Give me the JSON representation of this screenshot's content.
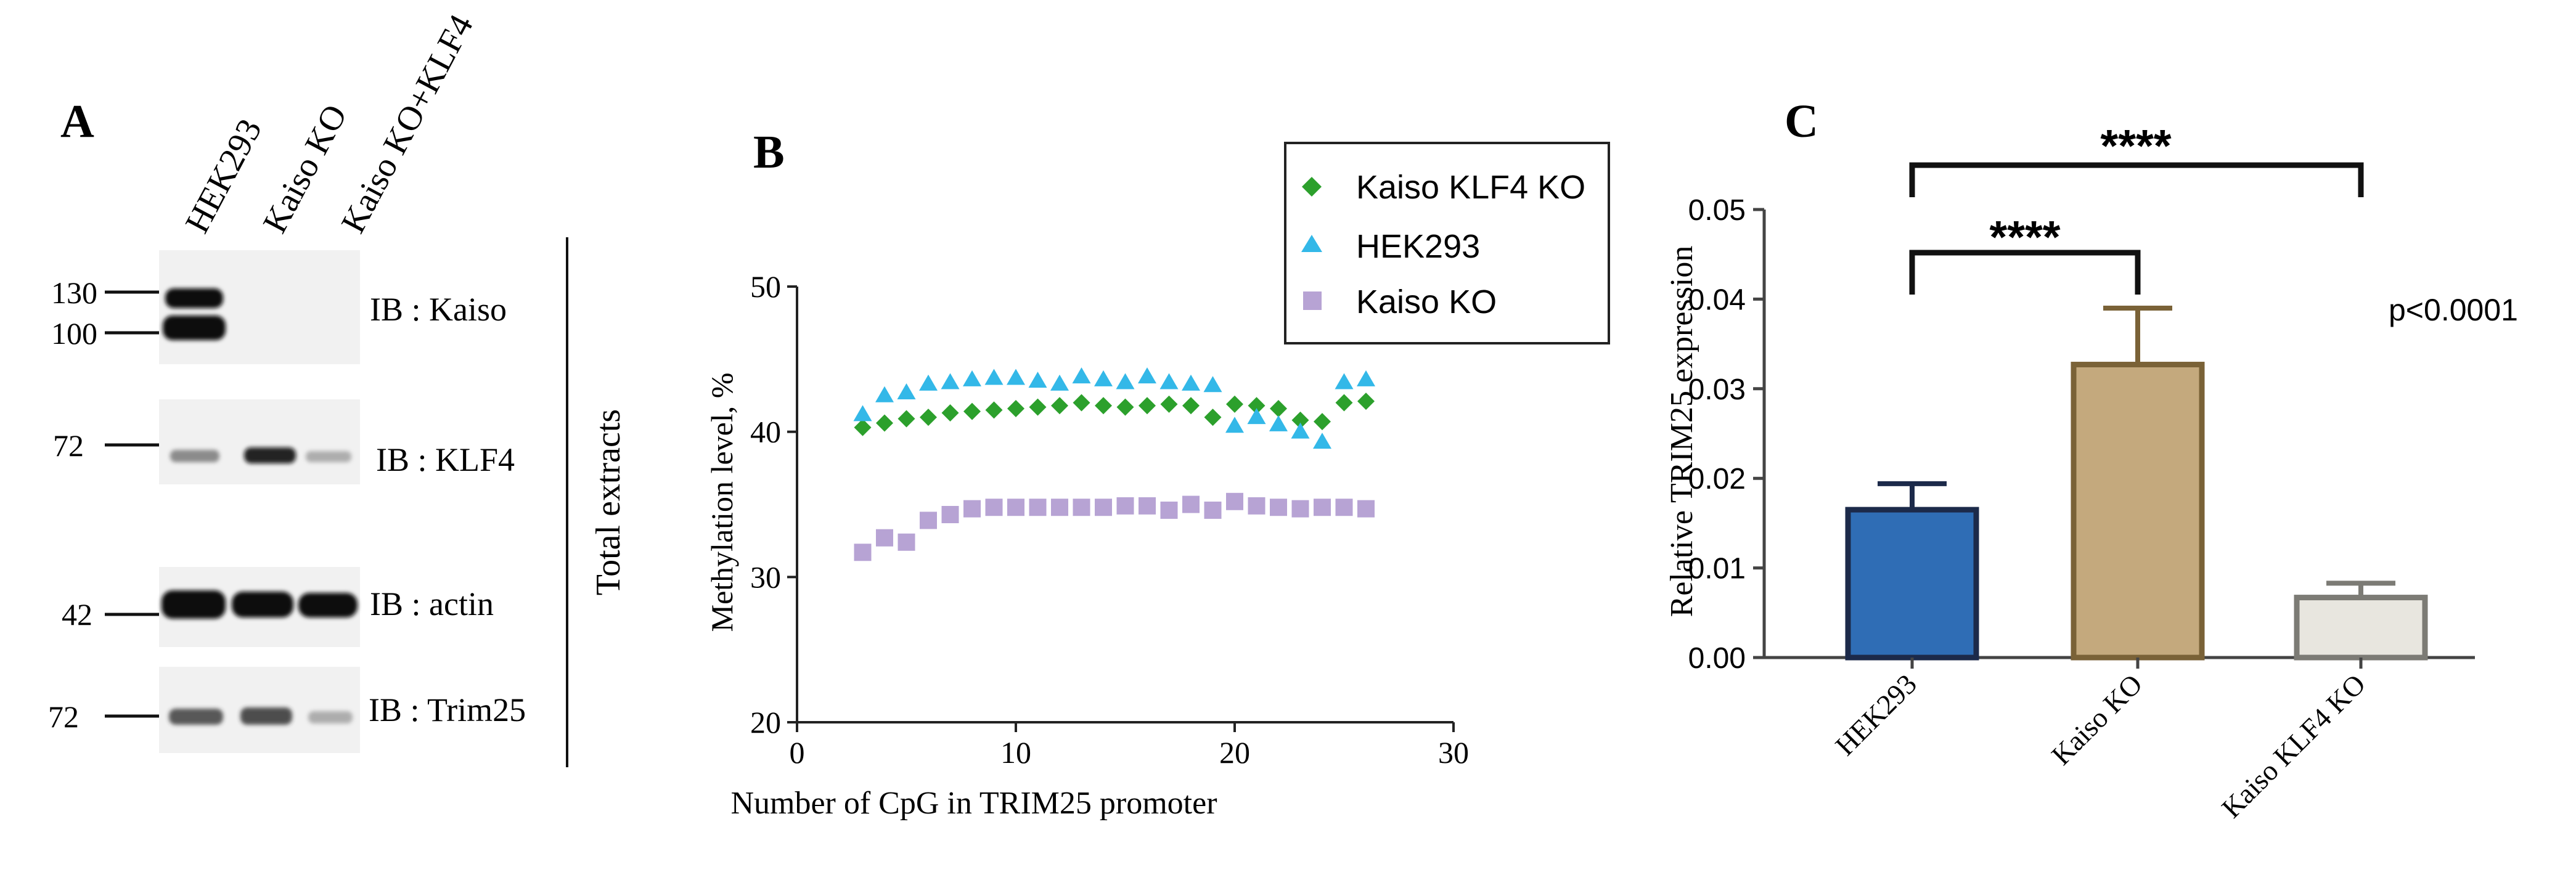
{
  "panel_a": {
    "label": "A",
    "lane_labels": [
      "HEK293",
      "Kaiso KO",
      "Kaiso KO+KLF4"
    ],
    "blots": [
      {
        "name": "kaiso",
        "markers": [
          "130",
          "100"
        ],
        "label": "IB : Kaiso",
        "intensity": [
          1.0,
          0.0,
          0.0
        ]
      },
      {
        "name": "klf4",
        "markers": [
          "72"
        ],
        "label": "IB : KLF4",
        "intensity": [
          0.35,
          0.65,
          0.25
        ]
      },
      {
        "name": "actin",
        "markers": [
          "42"
        ],
        "label": "IB : actin",
        "intensity": [
          1.0,
          0.95,
          0.9
        ]
      },
      {
        "name": "trim25",
        "markers": [
          "72"
        ],
        "label": "IB : Trim25",
        "intensity": [
          0.55,
          0.6,
          0.3
        ]
      }
    ],
    "side_label": "Total extracts"
  },
  "chart_data": [
    {
      "panel": "B",
      "type": "scatter",
      "xlabel": "Number of CpG in TRIM25 promoter",
      "ylabel": "Methylation level, %",
      "xlim": [
        0,
        30
      ],
      "ylim": [
        20,
        50
      ],
      "xticks": [
        0,
        10,
        20,
        30
      ],
      "yticks": [
        20,
        30,
        40,
        50
      ],
      "legend_position": "top-right",
      "series": [
        {
          "name": "Kaiso KLF4 KO",
          "marker": "diamond",
          "color": "#2ca02c",
          "x": [
            3,
            4,
            5,
            6,
            7,
            8,
            9,
            10,
            11,
            12,
            13,
            14,
            15,
            16,
            17,
            18,
            19,
            20,
            21,
            22,
            23,
            24,
            25,
            26
          ],
          "y": [
            40.3,
            40.6,
            40.9,
            41.0,
            41.3,
            41.4,
            41.5,
            41.6,
            41.7,
            41.8,
            42.0,
            41.8,
            41.7,
            41.8,
            41.9,
            41.8,
            41.0,
            41.9,
            41.8,
            41.6,
            40.8,
            40.7,
            42.0,
            42.1
          ]
        },
        {
          "name": "HEK293",
          "marker": "triangle",
          "color": "#33b8e8",
          "x": [
            3,
            4,
            5,
            6,
            7,
            8,
            9,
            10,
            11,
            12,
            13,
            14,
            15,
            16,
            17,
            18,
            19,
            20,
            21,
            22,
            23,
            24,
            25,
            26
          ],
          "y": [
            41.2,
            42.5,
            42.7,
            43.3,
            43.4,
            43.6,
            43.7,
            43.7,
            43.5,
            43.3,
            43.8,
            43.6,
            43.4,
            43.8,
            43.4,
            43.3,
            43.2,
            40.4,
            41.0,
            40.5,
            40.0,
            39.3,
            43.4,
            43.6
          ]
        },
        {
          "name": "Kaiso KO",
          "marker": "square",
          "color": "#b7a3d4",
          "x": [
            3,
            4,
            5,
            6,
            7,
            8,
            9,
            10,
            11,
            12,
            13,
            14,
            15,
            16,
            17,
            18,
            19,
            20,
            21,
            22,
            23,
            24,
            25,
            26
          ],
          "y": [
            31.7,
            32.7,
            32.4,
            33.9,
            34.3,
            34.7,
            34.8,
            34.8,
            34.8,
            34.8,
            34.8,
            34.8,
            34.9,
            34.9,
            34.6,
            35.0,
            34.6,
            35.2,
            34.9,
            34.8,
            34.7,
            34.8,
            34.8,
            34.7
          ]
        }
      ]
    },
    {
      "panel": "C",
      "type": "bar",
      "ylabel": "Relative TRIM25 expression",
      "categories": [
        "HEK293",
        "Kaiso KO",
        "Kaiso KLF4 KO"
      ],
      "values": [
        0.0165,
        0.0327,
        0.0067
      ],
      "errors": [
        0.0029,
        0.0063,
        0.0016
      ],
      "colors": [
        "#2f6db5",
        "#c4a97d",
        "#e8e6df"
      ],
      "edge_colors": [
        "#1c2a4a",
        "#7a6237",
        "#7c7b75"
      ],
      "ylim": [
        0,
        0.05
      ],
      "yticks": [
        "0.00",
        "0.01",
        "0.02",
        "0.03",
        "0.04",
        "0.05"
      ],
      "significance": [
        {
          "from": "HEK293",
          "to": "Kaiso KO",
          "label": "****"
        },
        {
          "from": "HEK293",
          "to": "Kaiso KLF4 KO",
          "label": "****"
        }
      ],
      "annotation": "p<0.0001"
    }
  ],
  "panel_labels": {
    "b": "B",
    "c": "C"
  }
}
